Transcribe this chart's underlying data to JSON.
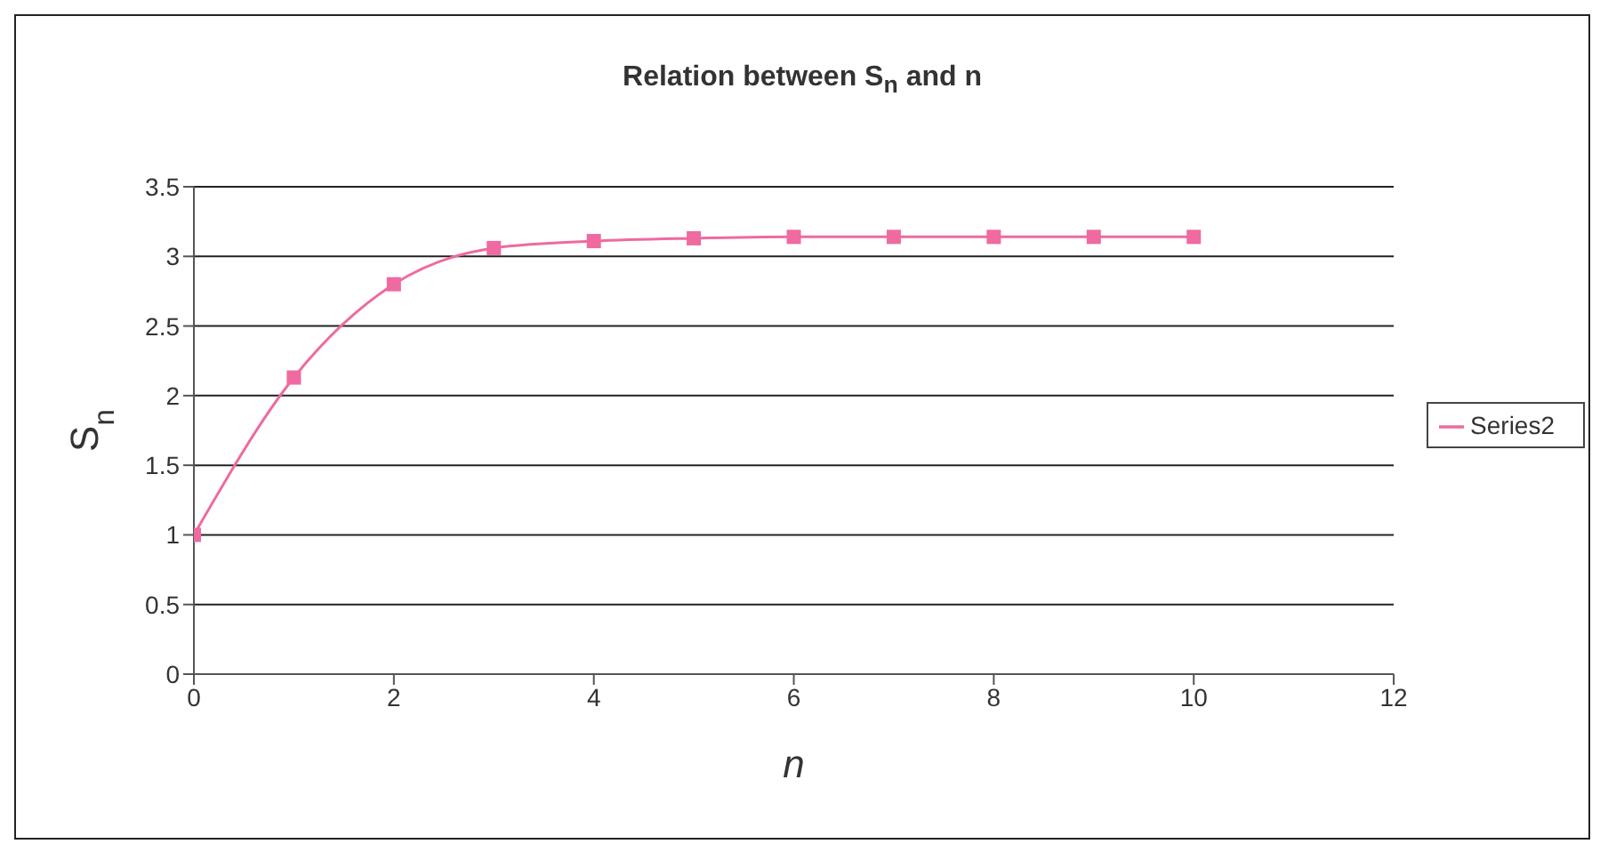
{
  "chart_data": {
    "type": "line",
    "title": "Relation between S$_{n}$ and n",
    "xlabel": "n",
    "ylabel": "S$_{n}$",
    "x": [
      0,
      1,
      2,
      3,
      4,
      5,
      6,
      7,
      8,
      9,
      10
    ],
    "series": [
      {
        "name": "Series2",
        "color": "#ee6aa0",
        "values": [
          1,
          2.13,
          2.8,
          3.06,
          3.11,
          3.13,
          3.14,
          3.14,
          3.14,
          3.14,
          3.14
        ]
      }
    ],
    "xlim": [
      0,
      12
    ],
    "xticks": [
      0,
      2,
      4,
      6,
      8,
      10,
      12
    ],
    "ylim": [
      0,
      3.5
    ],
    "yticks": [
      0,
      0.5,
      1,
      1.5,
      2,
      2.5,
      3,
      3.5
    ],
    "grid": "y",
    "legend": "right",
    "marker": "square",
    "line_style": "solid"
  }
}
